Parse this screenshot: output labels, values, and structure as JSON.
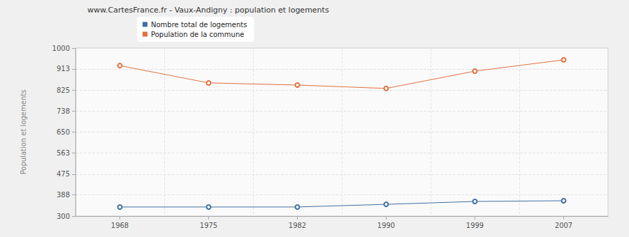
{
  "chart_data": {
    "type": "line",
    "title": "www.CartesFrance.fr - Vaux-Andigny : population et logements",
    "y_label": "Population et logements",
    "categories": [
      "1968",
      "1975",
      "1982",
      "1990",
      "1999",
      "2007"
    ],
    "series": [
      {
        "name": "Nombre total de logements",
        "color": "#3e6fa3",
        "values": [
          338,
          338,
          338,
          349,
          361,
          364
        ]
      },
      {
        "name": "Population de la commune",
        "color": "#e0703f",
        "values": [
          927,
          855,
          846,
          832,
          904,
          951
        ]
      }
    ],
    "ylim": [
      300,
      1000
    ],
    "yticks": [
      300,
      388,
      475,
      563,
      650,
      738,
      825,
      913,
      1000
    ],
    "grid": true,
    "legend": "top",
    "marker": "circle"
  }
}
